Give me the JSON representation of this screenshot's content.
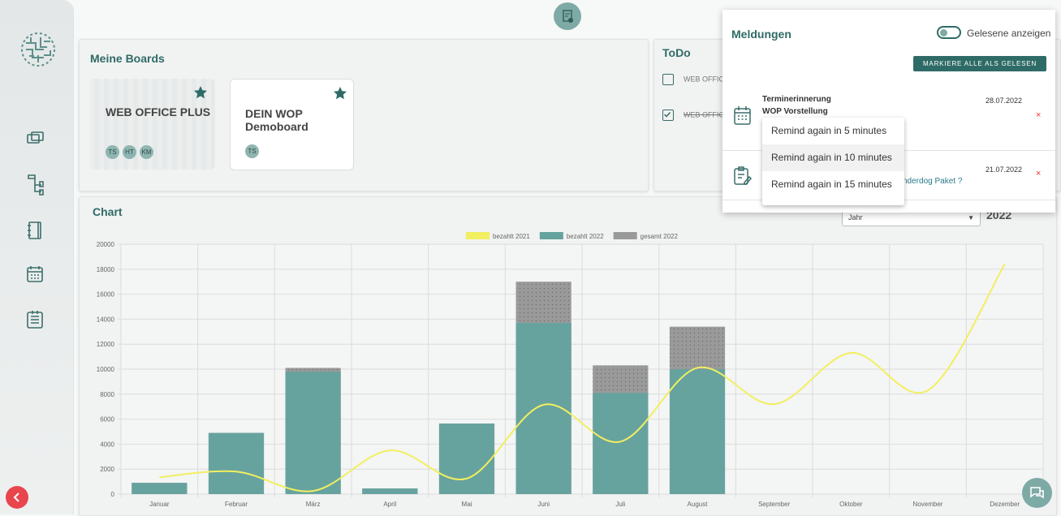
{
  "boards": {
    "title": "Meine Boards",
    "cards": [
      {
        "title": "WEB OFFICE PLUS",
        "members": [
          "TS",
          "HT",
          "KM"
        ]
      },
      {
        "title": "DEIN WOP Demoboard",
        "members": [
          "TS"
        ]
      }
    ]
  },
  "todo": {
    "title": "ToDo",
    "items": [
      {
        "text": "WEB OFFICE",
        "done": false
      },
      {
        "text": "WEB OFFICE",
        "done": true
      }
    ]
  },
  "chart_panel": {
    "title": "Chart",
    "period": "Jahr",
    "year": "2022"
  },
  "chart_data": {
    "type": "bar",
    "categories": [
      "Januar",
      "Februar",
      "März",
      "April",
      "Mai",
      "Juni",
      "Juli",
      "August",
      "September",
      "Oktober",
      "November",
      "Dezember"
    ],
    "series": [
      {
        "name": "bezahlt 2021",
        "type": "line",
        "color": "#f2ef60",
        "values": [
          1350,
          1800,
          250,
          3500,
          1250,
          7150,
          4200,
          10100,
          7200,
          11300,
          8300,
          18400
        ]
      },
      {
        "name": "bezahlt 2022",
        "type": "bar",
        "color": "#67a39e",
        "values": [
          900,
          4900,
          9800,
          450,
          5650,
          13700,
          8100,
          10000,
          null,
          null,
          null,
          null
        ]
      },
      {
        "name": "gesamt 2022",
        "type": "bar",
        "color": "#9a9a9a",
        "values": [
          900,
          4900,
          10100,
          450,
          5650,
          17000,
          10300,
          13400,
          null,
          null,
          null,
          null
        ]
      }
    ],
    "ylim": [
      0,
      20000
    ],
    "yticks": [
      0,
      2000,
      4000,
      6000,
      8000,
      10000,
      12000,
      14000,
      16000,
      18000,
      20000
    ],
    "grid": true,
    "legend": "top"
  },
  "notifications": {
    "title": "Meldungen",
    "toggle_label": "Gelesene anzeigen",
    "show_read": false,
    "mark_all": "MARKIERE ALLE ALS GELESEN",
    "items": [
      {
        "kind": "Terminerinnerung",
        "text": "WOP Vorstellung",
        "date": "28.07.2022"
      },
      {
        "text": "nderdog Paket ?",
        "date": "21.07.2022"
      }
    ],
    "menu": [
      "Remind again in 5 minutes",
      "Remind again in 10 minutes",
      "Remind again in 15 minutes"
    ]
  }
}
